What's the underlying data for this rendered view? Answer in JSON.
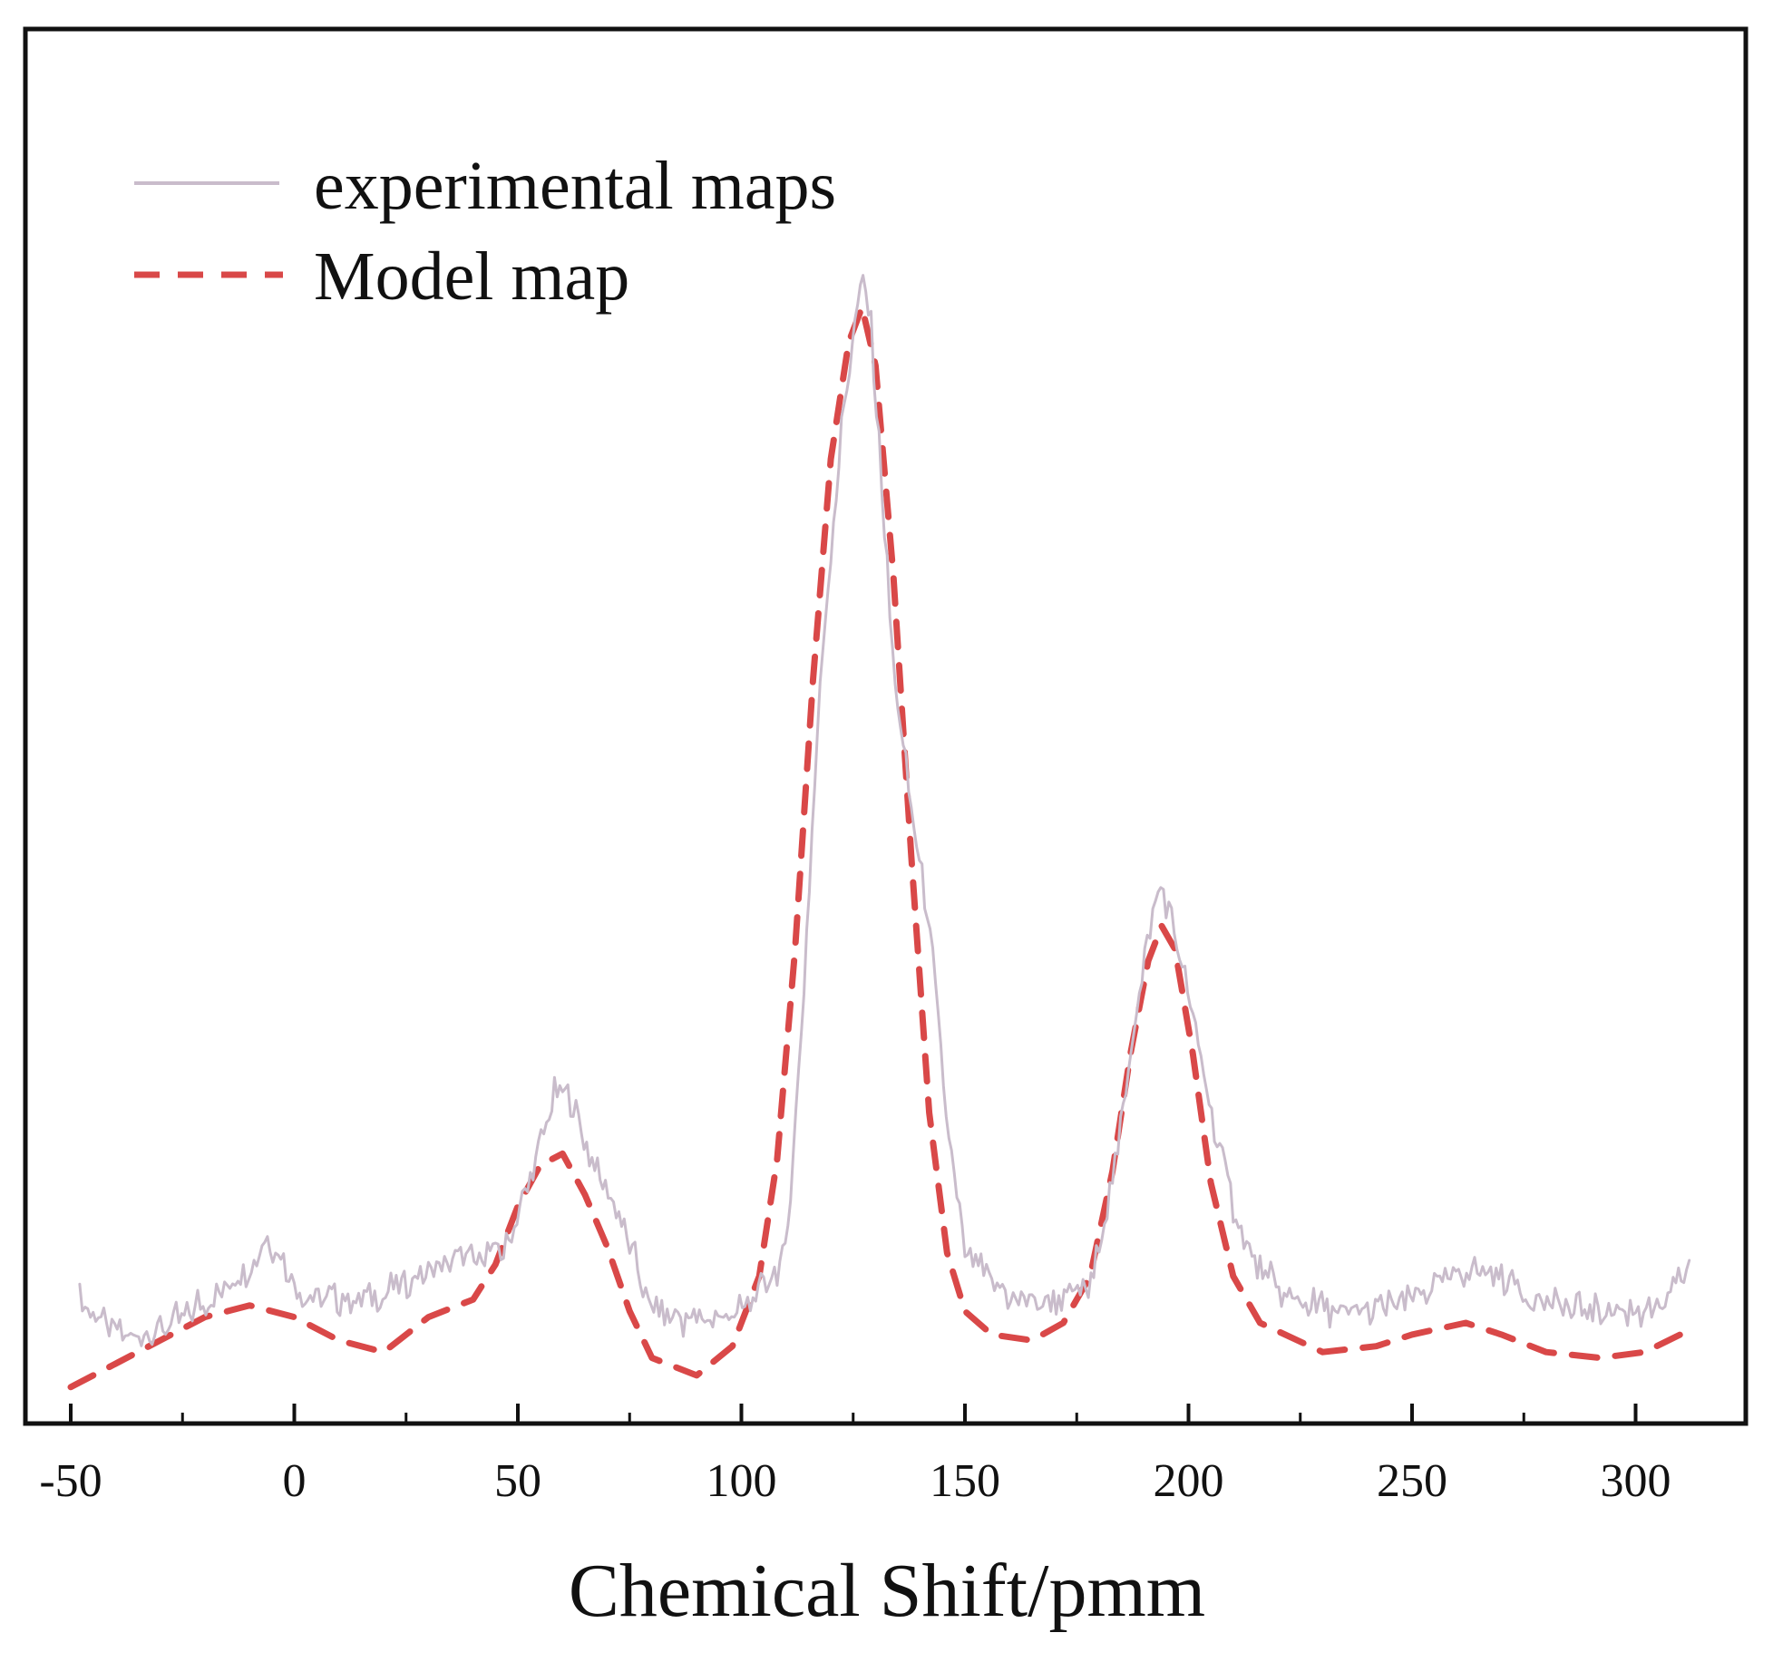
{
  "chart_data": {
    "type": "line",
    "title": "",
    "xlabel": "Chemical Shift/pmm",
    "ylabel": "",
    "xlim": [
      -50,
      315
    ],
    "ylim": [
      0,
      1.05
    ],
    "xticks": [
      -50,
      0,
      50,
      100,
      150,
      200,
      250,
      300
    ],
    "xtick_labels": [
      "-50",
      "0",
      "50",
      "100",
      "150",
      "200",
      "250",
      "300"
    ],
    "yticks_shown": false,
    "grid": false,
    "legend_position": "top-left",
    "series": [
      {
        "name": "experimental maps",
        "style": "solid",
        "color": "#c9bccb",
        "x": [
          -48,
          -40,
          -32,
          -24,
          -16,
          -10,
          -6,
          -2,
          2,
          10,
          20,
          30,
          40,
          48,
          54,
          58,
          60,
          63,
          66,
          70,
          75,
          80,
          90,
          100,
          105,
          110,
          114,
          118,
          122,
          125,
          127,
          129,
          131,
          134,
          138,
          142,
          146,
          150,
          160,
          170,
          178,
          184,
          188,
          192,
          194,
          196,
          200,
          205,
          210,
          215,
          222,
          232,
          242,
          250,
          256,
          262,
          268,
          276,
          286,
          296,
          306,
          312
        ],
        "y": [
          0.1,
          0.07,
          0.07,
          0.09,
          0.11,
          0.13,
          0.155,
          0.13,
          0.105,
          0.1,
          0.105,
          0.125,
          0.135,
          0.145,
          0.22,
          0.275,
          0.28,
          0.26,
          0.225,
          0.19,
          0.15,
          0.09,
          0.08,
          0.09,
          0.11,
          0.135,
          0.37,
          0.65,
          0.83,
          0.93,
          0.975,
          0.93,
          0.82,
          0.64,
          0.52,
          0.42,
          0.25,
          0.14,
          0.1,
          0.1,
          0.11,
          0.22,
          0.34,
          0.43,
          0.45,
          0.43,
          0.36,
          0.26,
          0.18,
          0.13,
          0.1,
          0.09,
          0.09,
          0.1,
          0.115,
          0.125,
          0.12,
          0.105,
          0.09,
          0.09,
          0.09,
          0.13
        ]
      },
      {
        "name": "Model map",
        "style": "dashed",
        "color": "#d94848",
        "x": [
          -50,
          -40,
          -30,
          -20,
          -10,
          0,
          10,
          20,
          30,
          40,
          45,
          50,
          55,
          60,
          65,
          70,
          75,
          80,
          90,
          98,
          104,
          108,
          112,
          116,
          120,
          124,
          127,
          130,
          134,
          138,
          142,
          146,
          150,
          156,
          165,
          172,
          178,
          183,
          187,
          191,
          194,
          197,
          201,
          205,
          210,
          216,
          230,
          242,
          250,
          262,
          270,
          280,
          292,
          302,
          310
        ],
        "y": [
          0.025,
          0.045,
          0.065,
          0.085,
          0.095,
          0.085,
          0.065,
          0.055,
          0.085,
          0.1,
          0.13,
          0.18,
          0.215,
          0.225,
          0.19,
          0.145,
          0.09,
          0.05,
          0.035,
          0.06,
          0.12,
          0.22,
          0.4,
          0.63,
          0.82,
          0.92,
          0.95,
          0.9,
          0.72,
          0.48,
          0.26,
          0.14,
          0.09,
          0.07,
          0.065,
          0.08,
          0.12,
          0.21,
          0.31,
          0.39,
          0.42,
          0.4,
          0.31,
          0.2,
          0.12,
          0.08,
          0.055,
          0.06,
          0.07,
          0.08,
          0.07,
          0.055,
          0.05,
          0.055,
          0.07
        ]
      }
    ]
  }
}
